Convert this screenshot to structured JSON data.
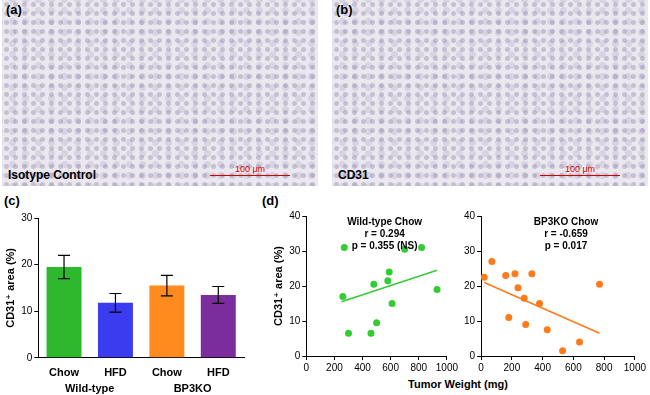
{
  "images": [
    {
      "panel": "(a)",
      "caption": "Isotype Control",
      "scale_bar": "100 μm"
    },
    {
      "panel": "(b)",
      "caption": "CD31",
      "scale_bar": "100 μm"
    }
  ],
  "chart_data": [
    {
      "panel": "(c)",
      "type": "bar",
      "categories": [
        "Chow",
        "HFD",
        "Chow",
        "HFD"
      ],
      "groups": [
        "Wild-type",
        "BP3KO"
      ],
      "values": [
        19.5,
        11.8,
        15.5,
        13.5
      ],
      "errors": [
        2.5,
        2.0,
        2.2,
        1.8
      ],
      "colors": [
        "#2db82d",
        "#3b3bf0",
        "#ff8a1e",
        "#7b2d9e"
      ],
      "ylabel": "CD31⁺ area (%)",
      "ylim": [
        0,
        30
      ],
      "yticks": [
        0,
        10,
        20,
        30
      ],
      "grid": false
    },
    {
      "panel": "(d)",
      "type": "scatter",
      "xlabel": "Tumor Weight (mg)",
      "ylabel": "CD31⁺ area (%)",
      "xlim": [
        0,
        1000
      ],
      "xticks": [
        0,
        200,
        400,
        600,
        800,
        1000
      ],
      "ylim": [
        0,
        40
      ],
      "yticks": [
        0,
        10,
        20,
        30,
        40
      ],
      "grid": false,
      "series": [
        {
          "name": "Wild-type Chow",
          "color": "#33cc33",
          "annotation": [
            "r = 0.294",
            "p = 0.355 (NS)"
          ],
          "x": [
            260,
            270,
            300,
            460,
            480,
            500,
            580,
            590,
            610,
            700,
            820,
            930
          ],
          "values": [
            17,
            31,
            6.5,
            6.5,
            20.5,
            9.5,
            21.5,
            24,
            15,
            30.5,
            31,
            19
          ],
          "fit": {
            "x": [
              250,
              930
            ],
            "values": [
              15.5,
              24.5
            ]
          }
        },
        {
          "name": "BP3KO Chow",
          "color": "#ff7a1a",
          "annotation": [
            "r = -0.659",
            "p = 0.017"
          ],
          "x": [
            20,
            70,
            160,
            180,
            220,
            240,
            280,
            290,
            330,
            380,
            430,
            530,
            640,
            770
          ],
          "values": [
            22.5,
            27,
            23,
            11,
            23.5,
            19.5,
            16.5,
            9,
            23.5,
            15,
            7.5,
            1.5,
            4,
            20.5
          ],
          "fit": {
            "x": [
              20,
              770
            ],
            "values": [
              21,
              6.5
            ]
          }
        }
      ]
    }
  ]
}
